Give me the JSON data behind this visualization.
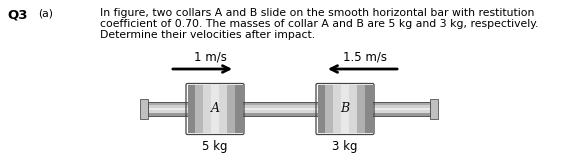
{
  "title_q": "Q3",
  "title_a": "(a)",
  "text_line1": "In figure, two collars A and B slide on the smooth horizontal bar with restitution",
  "text_line2": "coefficient of 0.70. The masses of collar A and B are 5 kg and 3 kg, respectively.",
  "text_line3": "Determine their velocities after impact.",
  "collar_A_label": "A",
  "collar_B_label": "B",
  "mass_A": "5 kg",
  "mass_B": "3 kg",
  "vel_A": "1 m/s",
  "vel_B": "1.5 m/s",
  "bg_color": "#ffffff",
  "text_color": "#000000",
  "font_size_text": 7.8,
  "font_size_label": 8.5,
  "font_size_q": 9.5,
  "font_size_collar": 9
}
